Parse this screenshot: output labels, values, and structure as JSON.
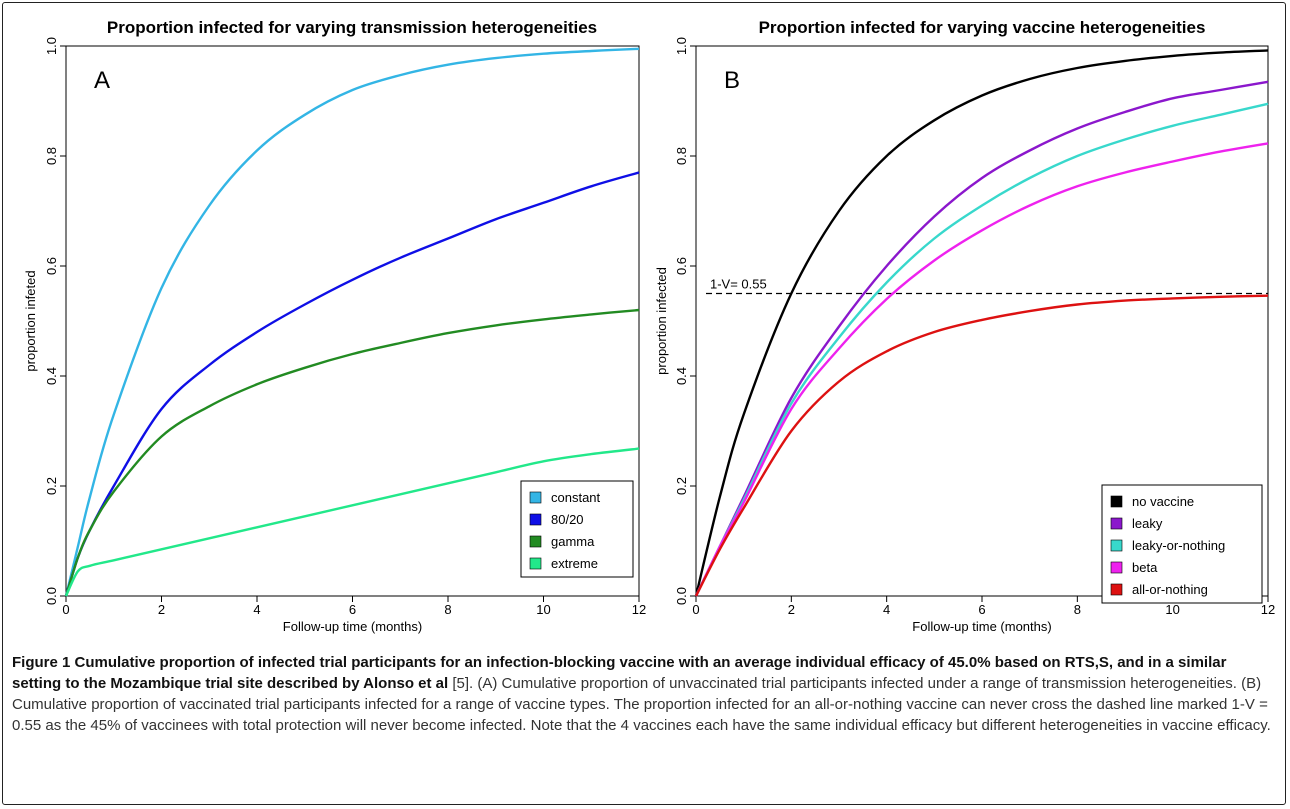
{
  "chart_data": [
    {
      "type": "line",
      "panel_letter": "A",
      "title": "Proportion infected for varying transmission heterogeneities",
      "xlabel": "Follow-up time (months)",
      "ylabel": "proportion infeted",
      "xlim": [
        0,
        12
      ],
      "ylim": [
        0,
        1
      ],
      "x_ticks": [
        "0",
        "2",
        "4",
        "6",
        "8",
        "10",
        "12"
      ],
      "y_ticks": [
        "0.0",
        "0.2",
        "0.4",
        "0.6",
        "0.8",
        "1.0"
      ],
      "legend_position": "bottom-right",
      "x": [
        0,
        0.25,
        0.5,
        1,
        2,
        3,
        4,
        5,
        6,
        7,
        8,
        9,
        10,
        11,
        12
      ],
      "series": [
        {
          "name": "constant",
          "color": "#33b5e5",
          "values": [
            0,
            0.09,
            0.18,
            0.33,
            0.56,
            0.71,
            0.81,
            0.875,
            0.92,
            0.947,
            0.966,
            0.978,
            0.986,
            0.991,
            0.995
          ]
        },
        {
          "name": "80/20",
          "color": "#0f0fe6",
          "values": [
            0,
            0.07,
            0.12,
            0.2,
            0.34,
            0.42,
            0.48,
            0.53,
            0.575,
            0.615,
            0.65,
            0.685,
            0.715,
            0.745,
            0.77
          ]
        },
        {
          "name": "gamma",
          "color": "#228b22",
          "values": [
            0,
            0.07,
            0.12,
            0.19,
            0.29,
            0.345,
            0.385,
            0.415,
            0.44,
            0.46,
            0.478,
            0.492,
            0.503,
            0.512,
            0.52
          ]
        },
        {
          "name": "extreme",
          "color": "#22e88a",
          "values": [
            0,
            0.045,
            0.055,
            0.065,
            0.085,
            0.105,
            0.125,
            0.145,
            0.165,
            0.185,
            0.205,
            0.225,
            0.245,
            0.258,
            0.268
          ]
        }
      ]
    },
    {
      "type": "line",
      "panel_letter": "B",
      "title": "Proportion infected for varying vaccine heterogeneities",
      "xlabel": "Follow-up time (months)",
      "ylabel": "proportion infected",
      "xlim": [
        0,
        12
      ],
      "ylim": [
        0,
        1
      ],
      "x_ticks": [
        "0",
        "2",
        "4",
        "6",
        "8",
        "10",
        "12"
      ],
      "y_ticks": [
        "0.0",
        "0.2",
        "0.4",
        "0.6",
        "0.8",
        "1.0"
      ],
      "legend_position": "bottom-right",
      "hline": {
        "y": 0.55,
        "label": "1-V= 0.55",
        "style": "dashed"
      },
      "x": [
        0,
        0.5,
        1,
        2,
        3,
        4,
        5,
        6,
        7,
        8,
        9,
        10,
        11,
        12
      ],
      "series": [
        {
          "name": "no vaccine",
          "color": "#000000",
          "values": [
            0,
            0.18,
            0.33,
            0.55,
            0.7,
            0.8,
            0.865,
            0.91,
            0.94,
            0.96,
            0.973,
            0.982,
            0.988,
            0.992
          ]
        },
        {
          "name": "leaky",
          "color": "#8b17cc",
          "values": [
            0,
            0.09,
            0.18,
            0.36,
            0.49,
            0.6,
            0.69,
            0.76,
            0.81,
            0.85,
            0.88,
            0.905,
            0.92,
            0.935
          ]
        },
        {
          "name": "leaky-or-nothing",
          "color": "#38d8cc",
          "values": [
            0,
            0.09,
            0.175,
            0.35,
            0.47,
            0.57,
            0.65,
            0.71,
            0.76,
            0.8,
            0.83,
            0.855,
            0.875,
            0.895
          ]
        },
        {
          "name": "beta",
          "color": "#ee22ee",
          "values": [
            0,
            0.09,
            0.17,
            0.34,
            0.45,
            0.54,
            0.61,
            0.665,
            0.71,
            0.745,
            0.77,
            0.79,
            0.808,
            0.823
          ]
        },
        {
          "name": "all-or-nothing",
          "color": "#dd1111",
          "values": [
            0,
            0.085,
            0.16,
            0.3,
            0.39,
            0.445,
            0.48,
            0.502,
            0.518,
            0.53,
            0.537,
            0.541,
            0.544,
            0.546
          ]
        }
      ]
    }
  ],
  "caption": {
    "bold": "Figure 1 Cumulative proportion of infected trial participants for an infection-blocking vaccine with an average individual efficacy of 45.0% based on RTS,S, and in a similar setting to the Mozambique trial site described by Alonso et al",
    "reference": " [5].",
    "text": " (A) Cumulative proportion of unvaccinated trial participants infected under a range of transmission heterogeneities. (B) Cumulative proportion of vaccinated trial participants infected for a range of vaccine types. The proportion infected for an all-or-nothing vaccine can never cross the dashed line marked 1-V = 0.55 as the 45% of vaccinees with total protection will never become infected. Note that the 4 vaccines each have the same individual efficacy but different heterogeneities in vaccine efficacy."
  }
}
